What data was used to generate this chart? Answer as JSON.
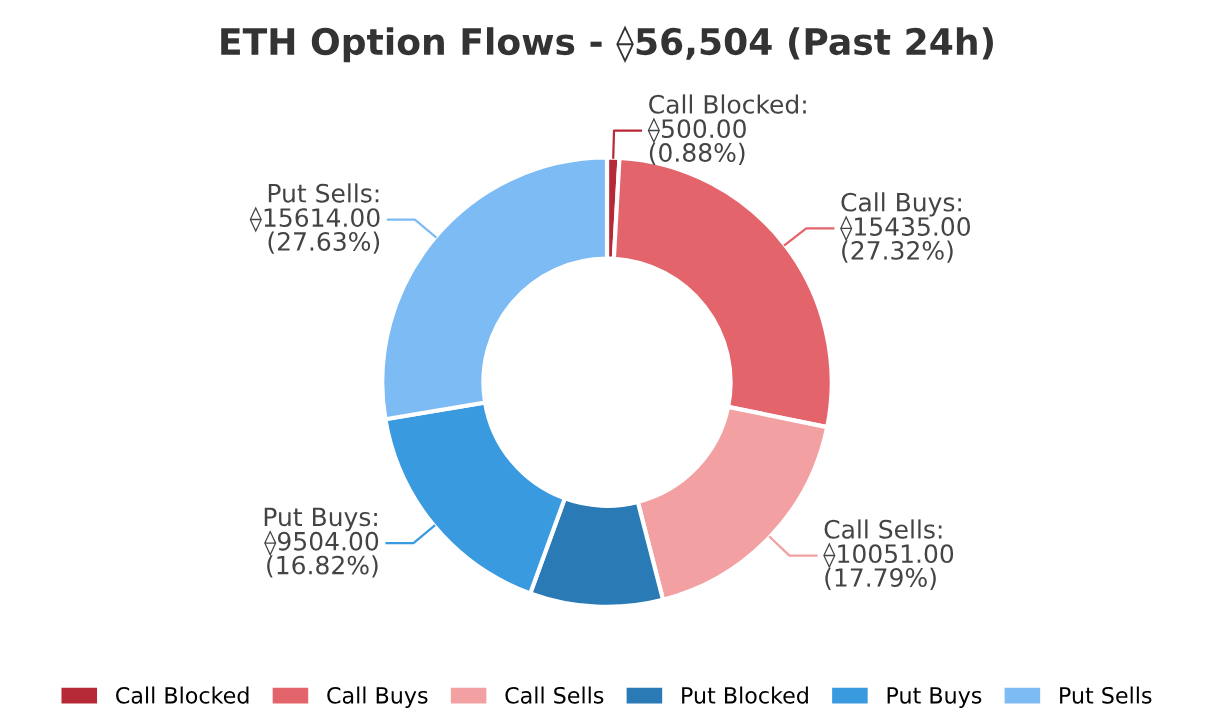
{
  "chart_data": {
    "type": "donut",
    "title": "ETH Option Flows - ⟠56,504 (Past 24h)",
    "categories": [
      "Call Blocked",
      "Call Buys",
      "Call Sells",
      "Put Blocked",
      "Put Buys",
      "Put Sells"
    ],
    "values": [
      500,
      15435,
      10051,
      5400,
      9504,
      15614
    ],
    "colors": [
      "#b52a36",
      "#e4646c",
      "#f3a0a3",
      "#2a7ab5",
      "#3a9ae0",
      "#7cbbf3"
    ],
    "value_labels": [
      "Call Blocked:\n⟠500.00\n(0.88%)",
      "Call Buys:\n⟠15435.00\n(27.32%)",
      "Call Sells:\n⟠10051.00\n(17.79%)",
      null,
      "Put Buys:\n⟠9504.00\n(16.82%)",
      "Put Sells:\n⟠15614.00\n(27.63%)"
    ],
    "legend": "bottom"
  }
}
